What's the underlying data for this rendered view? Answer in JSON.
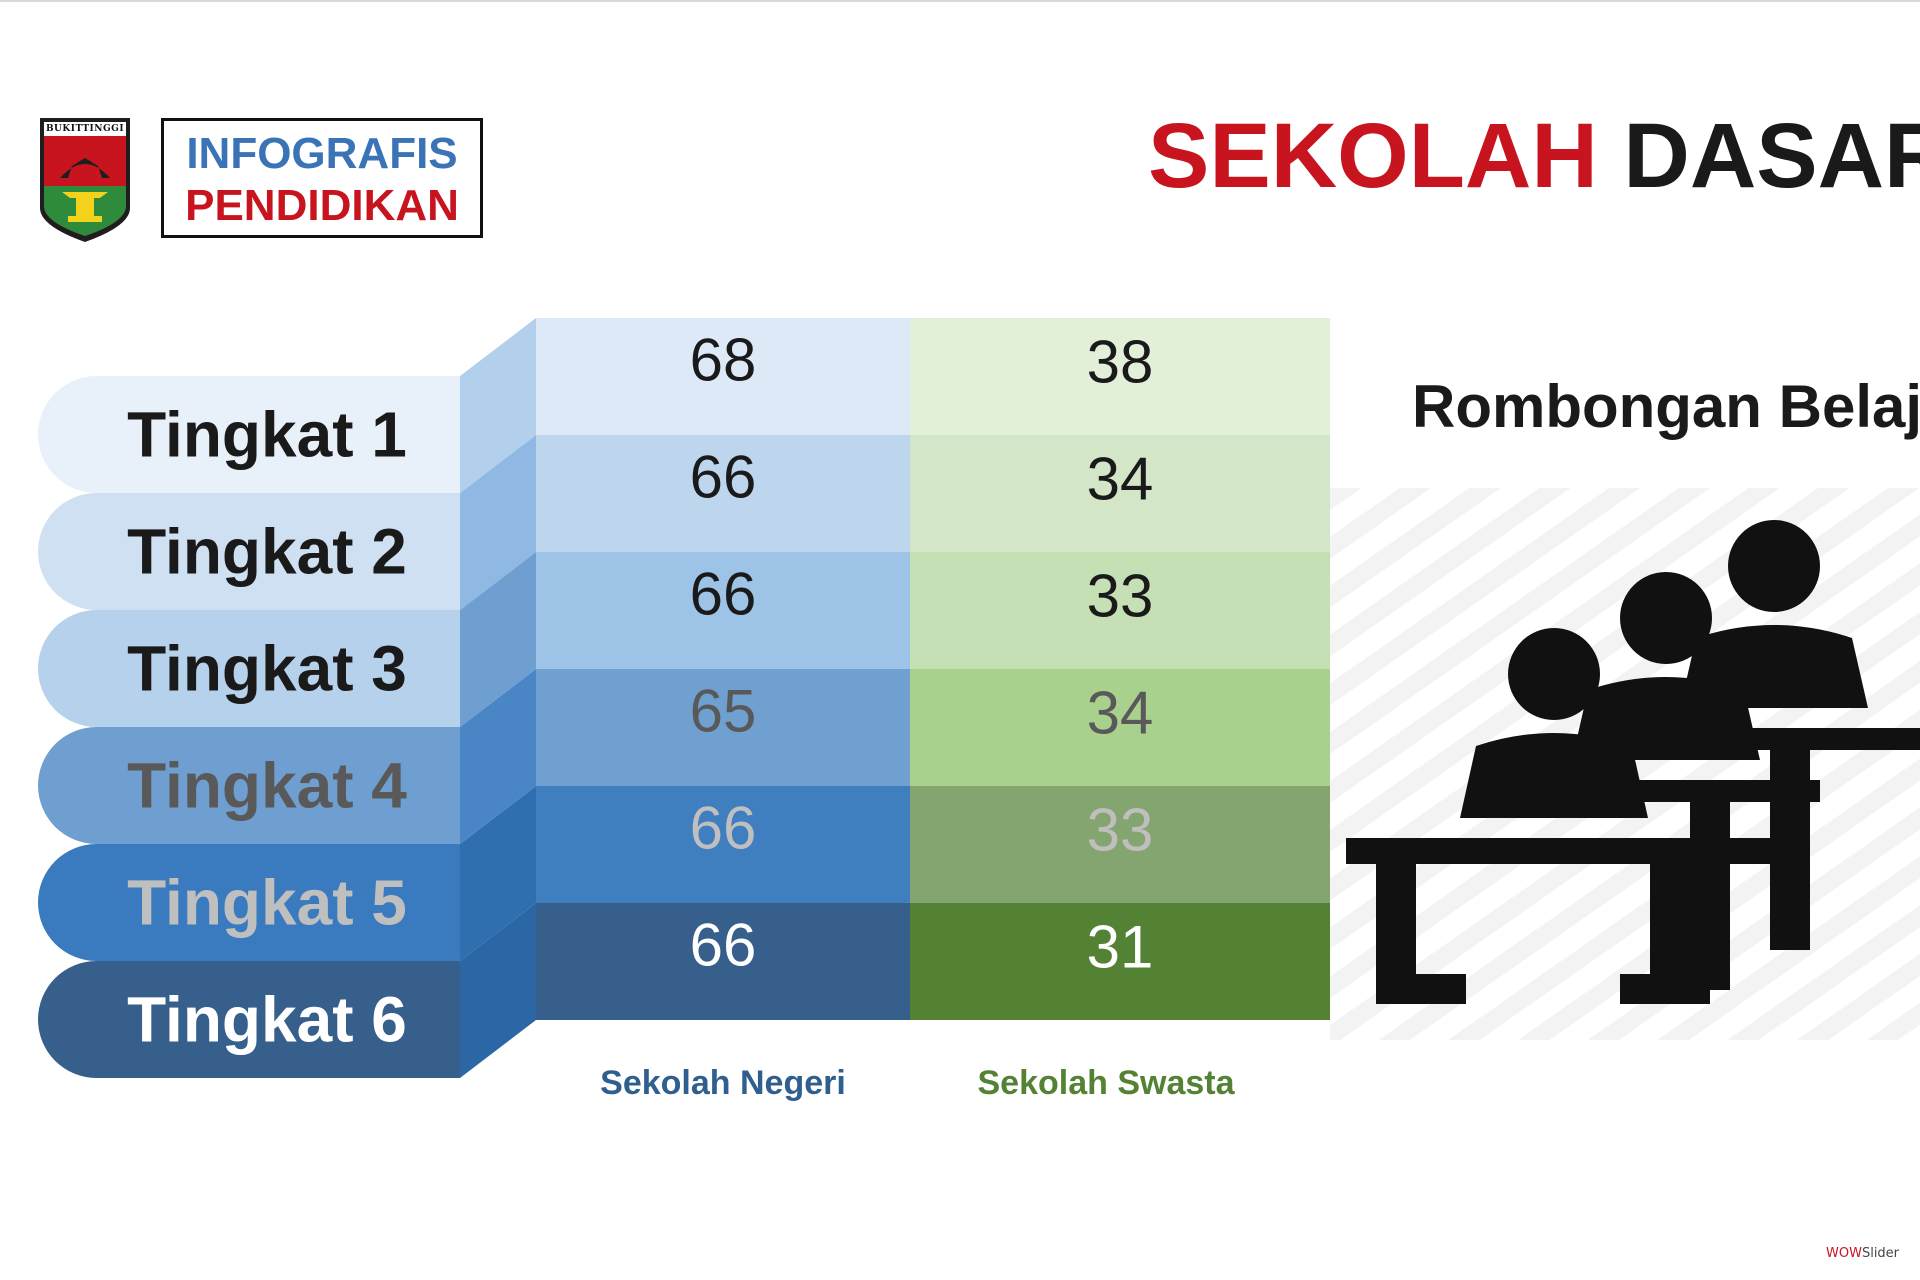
{
  "header": {
    "crest_text": "BUKITTINGGI",
    "info_line1": "INFOGRAFIS",
    "info_line2": "PENDIDIKAN",
    "title_part1": "SEKOLAH",
    "title_part2": "DASAR"
  },
  "subtitle": "Rombongan Belaj",
  "chart_data": {
    "type": "table",
    "categories": [
      "Tingkat 1",
      "Tingkat 2",
      "Tingkat 3",
      "Tingkat 4",
      "Tingkat 5",
      "Tingkat 6"
    ],
    "series": [
      {
        "name": "Sekolah Negeri",
        "values": [
          68,
          66,
          66,
          65,
          66,
          66
        ]
      },
      {
        "name": "Sekolah Swasta",
        "values": [
          38,
          34,
          33,
          34,
          33,
          31
        ]
      }
    ]
  },
  "colors": {
    "negeri_rows": [
      "#dde9f6",
      "#bdd6ee",
      "#9dc3e6",
      "#6fa0d0",
      "#3f7ebf",
      "#365f8b"
    ],
    "swasta_rows": [
      "#e2efd9",
      "#d4e6c8",
      "#c5e0b4",
      "#a9d18e",
      "#84a56f",
      "#548235"
    ],
    "label_rows": [
      "#e8f0f9",
      "#cfe0f2",
      "#b6d1ec",
      "#6f9fd0",
      "#3a7abf",
      "#365f8b"
    ],
    "connector_rows": [
      "#b2d0ec",
      "#8fb8e2",
      "#6f9fd0",
      "#4a86c6",
      "#2f6fb0",
      "#2a67a4"
    ],
    "label_text": [
      "#1a1a1a",
      "#1a1a1a",
      "#1a1a1a",
      "#595959",
      "#bfbfbf",
      "#ffffff"
    ],
    "value_text": [
      "#1a1a1a",
      "#1a1a1a",
      "#1a1a1a",
      "#595959",
      "#bfbfbf",
      "#ffffff"
    ],
    "negeri_label": "#2f5f8f",
    "swasta_label": "#548235"
  },
  "badge": {
    "part1": "WOW",
    "part2": "Slider"
  }
}
